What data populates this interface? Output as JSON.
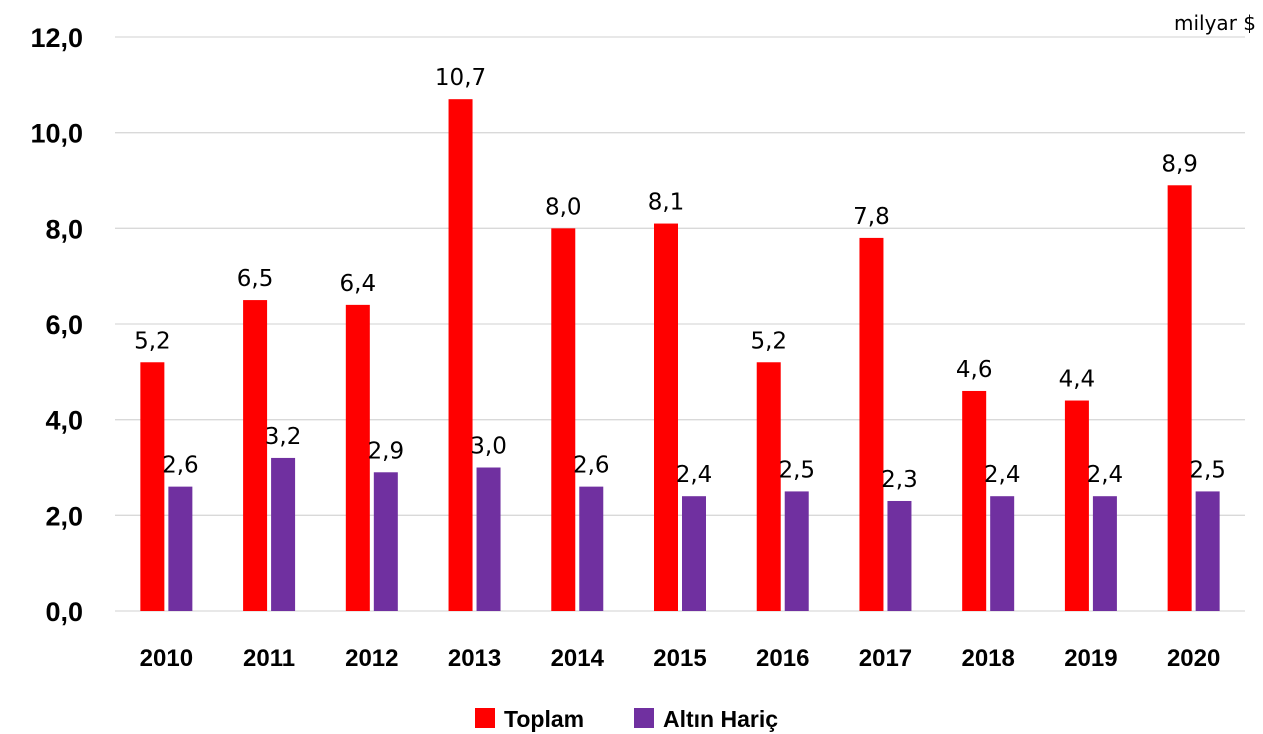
{
  "chart_data": {
    "type": "bar",
    "unit_label": "milyar $",
    "categories": [
      "2010",
      "2011",
      "2012",
      "2013",
      "2014",
      "2015",
      "2016",
      "2017",
      "2018",
      "2019",
      "2020"
    ],
    "series": [
      {
        "name": "Toplam",
        "color": "#ff0000",
        "values": [
          5.2,
          6.5,
          6.4,
          10.7,
          8.0,
          8.1,
          5.2,
          7.8,
          4.6,
          4.4,
          8.9
        ],
        "labels": [
          "5,2",
          "6,5",
          "6,4",
          "10,7",
          "8,0",
          "8,1",
          "5,2",
          "7,8",
          "4,6",
          "4,4",
          "8,9"
        ]
      },
      {
        "name": "Altın Hariç",
        "color": "#7030a0",
        "values": [
          2.6,
          3.2,
          2.9,
          3.0,
          2.6,
          2.4,
          2.5,
          2.3,
          2.4,
          2.4,
          2.5
        ],
        "labels": [
          "2,6",
          "3,2",
          "2,9",
          "3,0",
          "2,6",
          "2,4",
          "2,5",
          "2,3",
          "2,4",
          "2,4",
          "2,5"
        ]
      }
    ],
    "ylim": [
      0,
      12
    ],
    "yticks": [
      "0,0",
      "2,0",
      "4,0",
      "6,0",
      "8,0",
      "10,0",
      "12,0"
    ],
    "grid": true,
    "legend_position": "bottom"
  }
}
